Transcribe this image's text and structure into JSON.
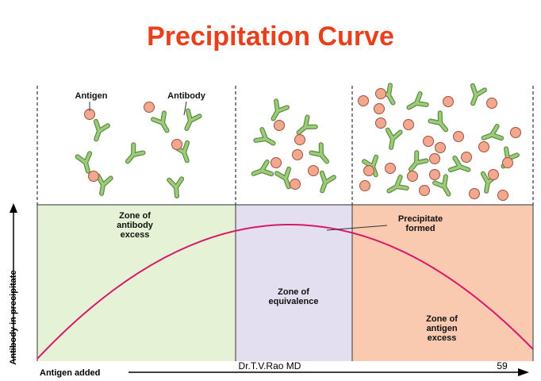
{
  "header": {
    "title": "Precipitation Curve"
  },
  "panel_labels": {
    "antigen": "Antigen",
    "antibody": "Antibody"
  },
  "zones": [
    {
      "lines": [
        "Zone of",
        "antibody",
        "excess"
      ]
    },
    {
      "lines": [
        "Zone of",
        "equivalence"
      ]
    },
    {
      "lines": [
        "Zone of",
        "antigen",
        "excess"
      ]
    }
  ],
  "curve_label": {
    "lines": [
      "Precipitate",
      "formed"
    ]
  },
  "axes": {
    "y_label": "Antibody in precipitate",
    "x_label": "Antigen added"
  },
  "footer": {
    "author": "Dr.T.V.Rao MD",
    "page": "59"
  }
}
